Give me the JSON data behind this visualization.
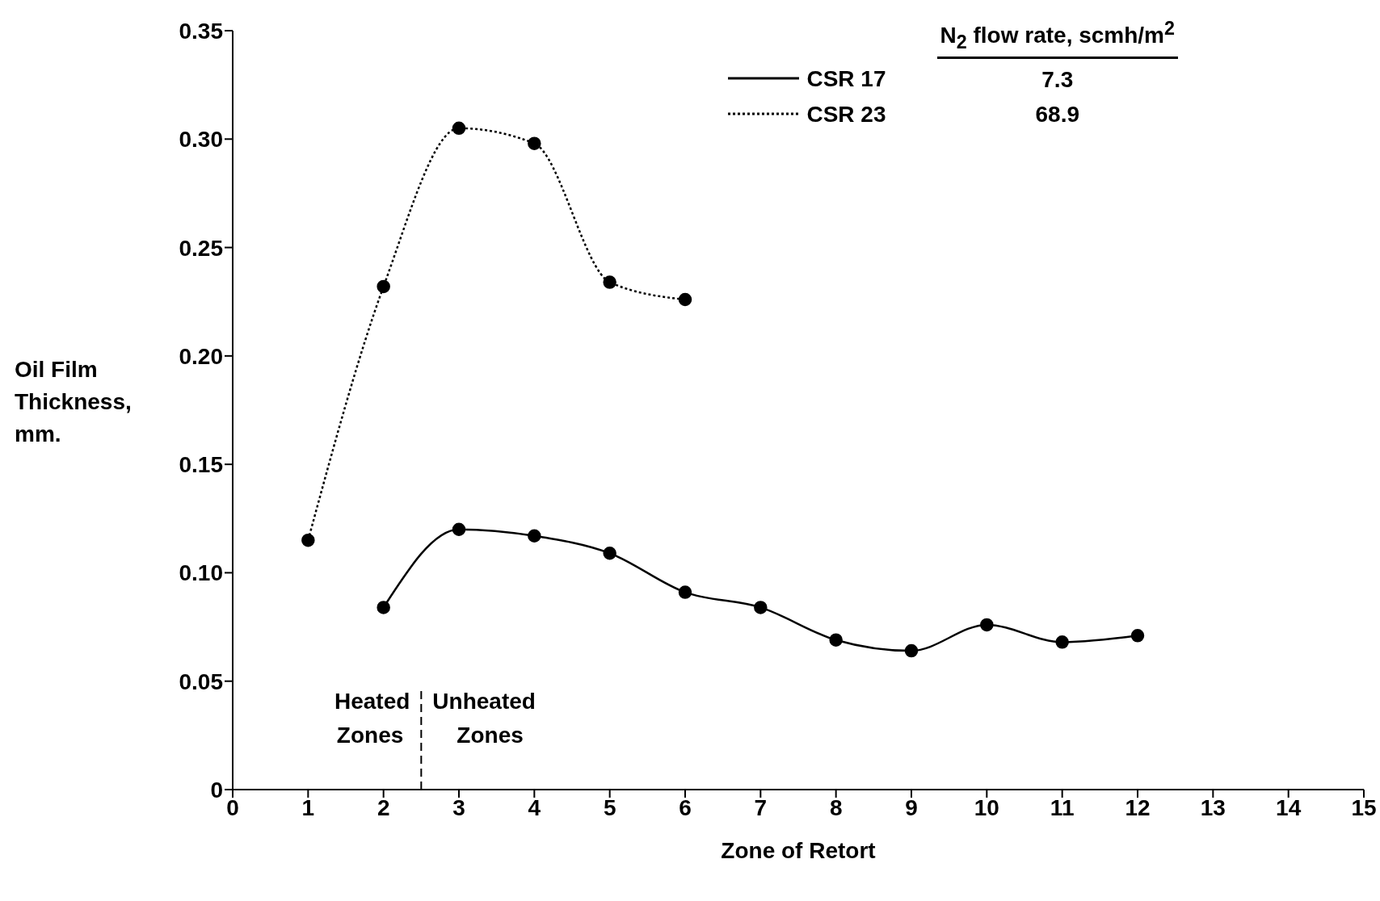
{
  "chart_data": {
    "type": "line",
    "xlabel": "Zone of Retort",
    "ylabel": "Oil Film Thickness, mm.",
    "x": [
      1,
      2,
      3,
      4,
      5,
      6,
      7,
      8,
      9,
      10,
      11,
      12
    ],
    "series": [
      {
        "name": "CSR 17",
        "color": "#000000",
        "line_style": "solid",
        "values": [
          null,
          0.084,
          0.12,
          0.117,
          0.109,
          0.091,
          0.084,
          0.069,
          0.064,
          0.076,
          0.068,
          0.071
        ]
      },
      {
        "name": "CSR 23",
        "color": "#000000",
        "line_style": "dotted",
        "values": [
          0.115,
          0.232,
          0.305,
          0.298,
          0.234,
          0.226,
          null,
          null,
          null,
          null,
          null,
          null
        ]
      }
    ],
    "xlim": [
      0,
      15
    ],
    "xticks": [
      0,
      1,
      2,
      3,
      4,
      5,
      6,
      7,
      8,
      9,
      10,
      11,
      12,
      13,
      14,
      15
    ],
    "ylim": [
      0,
      0.35
    ],
    "yticks": [
      0,
      0.05,
      {
        "value": 0.1,
        "label": "0.10"
      },
      0.15,
      {
        "value": 0.2,
        "label": "0.20"
      },
      0.25,
      {
        "value": 0.3,
        "label": "0.30"
      },
      0.35
    ],
    "ref_lines": [
      {
        "axis": "x",
        "value": 2.5,
        "line_style": "dashed",
        "color": "#000000"
      }
    ],
    "annotations": [
      "Heated Zones",
      "Unheated Zones",
      "N$_{2}$ flow rate, scmh/m$^{2}$",
      "7.3",
      "68.9"
    ],
    "marker": "circle",
    "grid": false,
    "legend": "top right"
  }
}
